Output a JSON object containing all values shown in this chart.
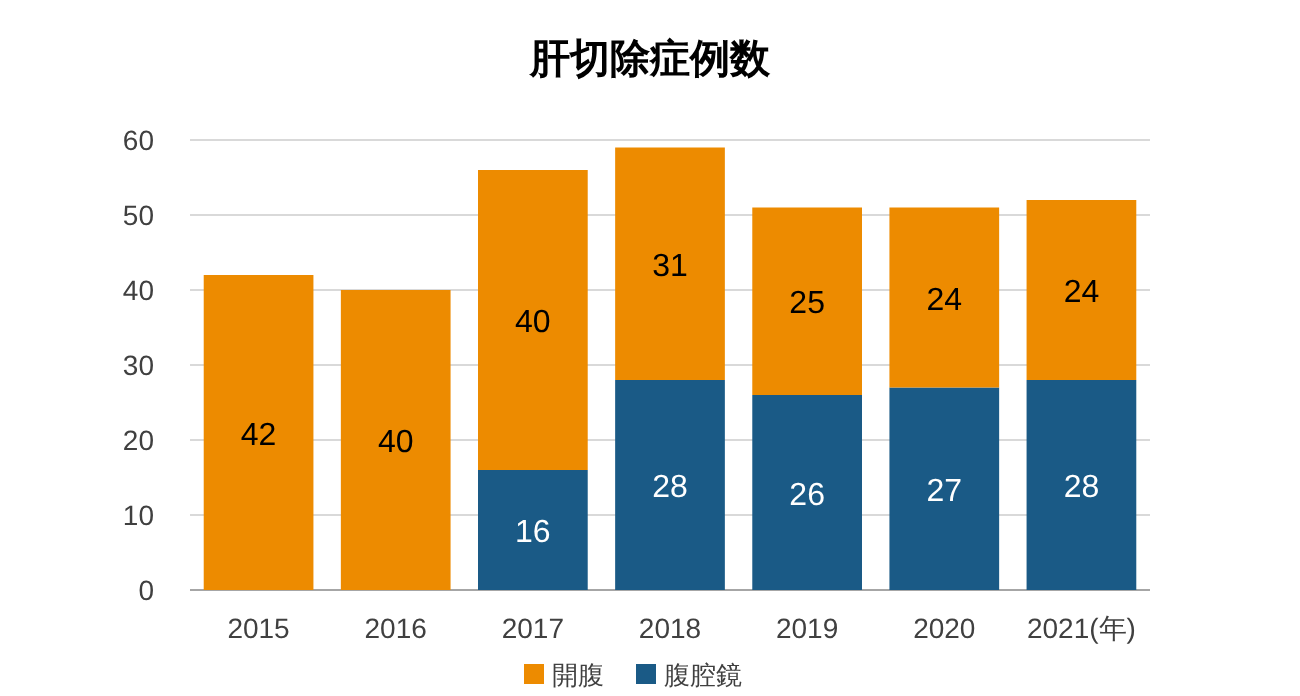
{
  "chart_data": {
    "type": "bar",
    "title": "肝切除症例数",
    "stacked": true,
    "categories": [
      "2015",
      "2016",
      "2017",
      "2018",
      "2019",
      "2020",
      "2021(年)"
    ],
    "series": [
      {
        "name": "腹腔鏡",
        "color": "#1a5a86",
        "values": [
          null,
          null,
          16,
          28,
          26,
          27,
          28
        ]
      },
      {
        "name": "開腹",
        "color": "#ed8b00",
        "values": [
          42,
          40,
          40,
          31,
          25,
          24,
          24
        ]
      }
    ],
    "ylim": [
      0,
      60
    ],
    "yticks": [
      0,
      10,
      20,
      30,
      40,
      50,
      60
    ],
    "grid": "y",
    "legend": "bottom",
    "data_labels": true
  }
}
